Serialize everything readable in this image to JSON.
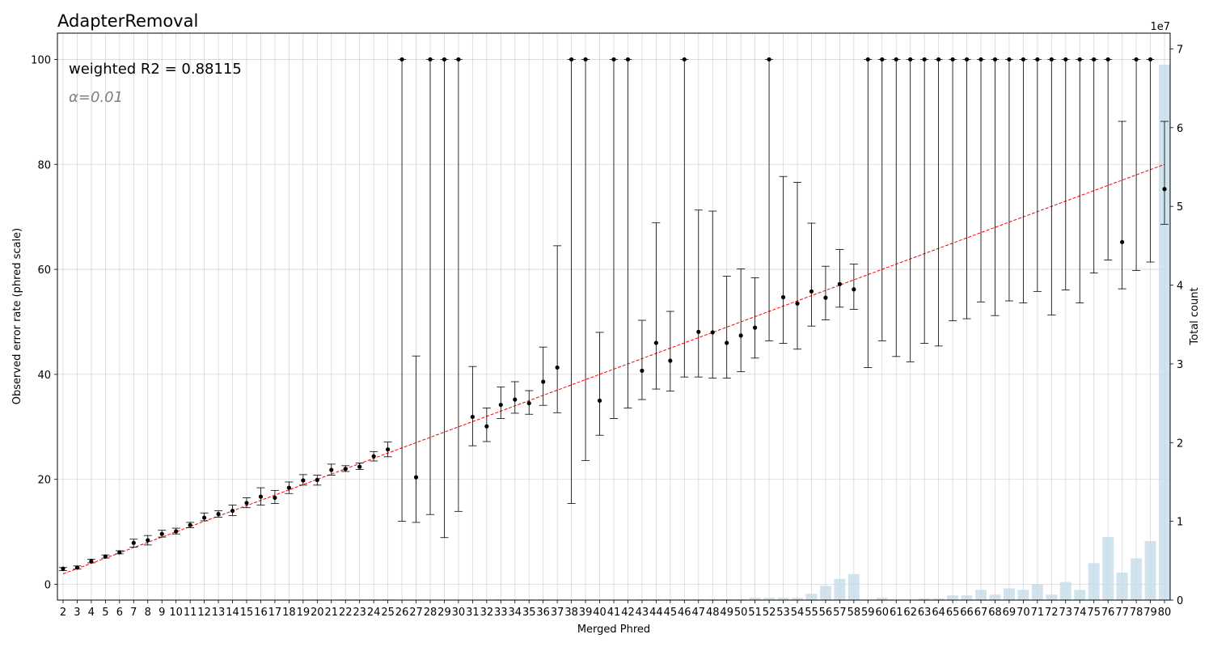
{
  "chart_data": {
    "type": "scatter",
    "title": "AdapterRemoval",
    "annotation": "weighted R2 = 0.88115",
    "alpha_label": "α=0.01",
    "xlabel": "Merged Phred",
    "ylabel": "Observed error rate (phred scale)",
    "ylabel_right": "Total count",
    "right_axis_offset": "1e7",
    "xlim": [
      1.6,
      80.4
    ],
    "ylim": [
      -3,
      105
    ],
    "ylim_right": [
      0,
      7.2
    ],
    "grid": true,
    "x": [
      2,
      3,
      4,
      5,
      6,
      7,
      8,
      9,
      10,
      11,
      12,
      13,
      14,
      15,
      16,
      17,
      18,
      19,
      20,
      21,
      22,
      23,
      24,
      25,
      26,
      27,
      28,
      29,
      30,
      31,
      32,
      33,
      34,
      35,
      36,
      37,
      38,
      39,
      40,
      41,
      42,
      43,
      44,
      45,
      46,
      47,
      48,
      49,
      50,
      51,
      52,
      53,
      54,
      55,
      56,
      57,
      58,
      59,
      60,
      61,
      62,
      63,
      64,
      65,
      66,
      67,
      68,
      69,
      70,
      71,
      72,
      73,
      74,
      75,
      76,
      77,
      78,
      79,
      80
    ],
    "series": [
      {
        "kind": "points_with_errorbars",
        "y": [
          3,
          3.2,
          4.4,
          5.3,
          6.1,
          7.9,
          8.4,
          9.6,
          10.1,
          11.3,
          12.7,
          13.4,
          14,
          15.5,
          16.7,
          16.5,
          18.4,
          19.8,
          19.9,
          21.8,
          22,
          22.4,
          24.4,
          25.7,
          100,
          20.4,
          100,
          100,
          100,
          31.9,
          30.1,
          34.2,
          35.2,
          34.5,
          38.6,
          41.3,
          100,
          100,
          35,
          100,
          100,
          40.7,
          46,
          42.6,
          100,
          48.1,
          48,
          46,
          47.4,
          48.9,
          100,
          54.7,
          53.5,
          55.8,
          54.6,
          57.2,
          56.2,
          100,
          100,
          100,
          100,
          100,
          100,
          100,
          100,
          100,
          100,
          100,
          100,
          100,
          100,
          100,
          100,
          100,
          100,
          65.2,
          100,
          100,
          75.3
        ],
        "ylo": [
          2.6,
          2.9,
          4.1,
          5,
          5.8,
          7.1,
          7.5,
          9,
          9.6,
          10.8,
          12.1,
          12.8,
          13.1,
          14.6,
          15.1,
          15.4,
          17.3,
          18.9,
          18.9,
          20.8,
          21.5,
          21.9,
          23.5,
          24.3,
          12,
          11.8,
          13.3,
          8.9,
          13.9,
          26.4,
          27.2,
          31.6,
          32.6,
          32.4,
          34.1,
          32.7,
          15.4,
          23.6,
          28.4,
          31.6,
          33.6,
          35.2,
          37.2,
          36.8,
          39.5,
          39.5,
          39.3,
          39.3,
          40.5,
          43.1,
          46.4,
          45.9,
          44.8,
          49.2,
          50.4,
          52.8,
          52.4,
          41.3,
          46.4,
          43.4,
          42.4,
          45.9,
          45.4,
          50.2,
          50.6,
          53.8,
          51.2,
          54,
          53.6,
          55.8,
          51.3,
          56.1,
          53.6,
          59.3,
          61.8,
          56.3,
          59.8,
          61.4,
          68.6
        ],
        "yhi": [
          3.2,
          3.5,
          4.8,
          5.6,
          6.4,
          8.6,
          9.3,
          10.3,
          10.7,
          11.8,
          13.6,
          14,
          15.1,
          16.5,
          18.4,
          17.9,
          19.5,
          20.9,
          20.8,
          22.9,
          22.6,
          23.1,
          25.3,
          27.1,
          100,
          43.5,
          100,
          100,
          100,
          41.5,
          33.6,
          37.6,
          38.6,
          36.9,
          45.2,
          64.5,
          100,
          100,
          48,
          100,
          100,
          50.3,
          68.9,
          52,
          100,
          71.3,
          71.1,
          58.7,
          60.1,
          58.4,
          100,
          77.7,
          76.6,
          68.8,
          60.6,
          63.8,
          61,
          100,
          100,
          100,
          100,
          100,
          100,
          100,
          100,
          100,
          100,
          100,
          100,
          100,
          100,
          100,
          100,
          100,
          100,
          88.2,
          100,
          100,
          88.2
        ]
      },
      {
        "kind": "fit_line",
        "color": "#ff0000",
        "x": [
          2,
          80
        ],
        "y": [
          2,
          80
        ]
      },
      {
        "kind": "bar",
        "axis": "right",
        "color": "#c6dcea",
        "values": [
          0,
          0,
          0,
          0,
          0,
          0,
          0,
          0,
          0,
          0,
          0,
          0,
          0,
          0,
          0,
          0,
          0,
          0,
          0,
          0,
          0.01,
          0.01,
          0.01,
          0.01,
          0,
          0,
          0,
          0,
          0,
          0,
          0,
          0.01,
          0.01,
          0.01,
          0.01,
          0,
          0,
          0,
          0,
          0,
          0,
          0.01,
          0.01,
          0.01,
          0.01,
          0.01,
          0.01,
          0.01,
          0.01,
          0.03,
          0.03,
          0.03,
          0.03,
          0.08,
          0.18,
          0.27,
          0.33,
          0,
          0.03,
          0,
          0,
          0.02,
          0.02,
          0.06,
          0.06,
          0.13,
          0.07,
          0.15,
          0.13,
          0.2,
          0.07,
          0.23,
          0.13,
          0.47,
          0.8,
          0.35,
          0.53,
          0.75,
          6.8
        ]
      }
    ]
  }
}
